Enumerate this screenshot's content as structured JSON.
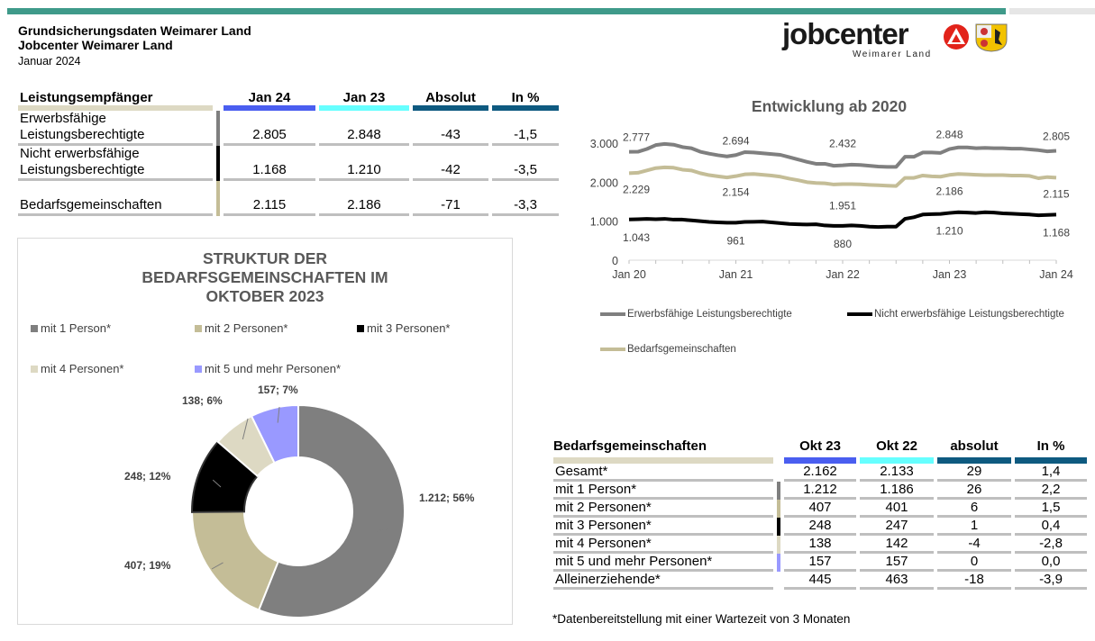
{
  "header": {
    "title1": "Grundsicherungsdaten Weimarer Land",
    "title2": "Jobcenter Weimarer Land",
    "period": "Januar 2024"
  },
  "logo": {
    "brand": "jobcenter",
    "sub": "Weimarer Land"
  },
  "colors": {
    "teal": "#3f9a8a",
    "blue": "#4a5ef0",
    "cyan": "#66ffff",
    "navy": "#0e5a80",
    "khaki": "#ddd9c3",
    "grey": "#7f7f7f",
    "bg_khaki": "#c4bd97",
    "black": "#000000",
    "light": "#ddd9c3",
    "lavender": "#9999ff"
  },
  "table1": {
    "headers": [
      "Leistungsempfänger",
      "Jan 24",
      "Jan 23",
      "Absolut",
      "In %"
    ],
    "rows": [
      {
        "label1": "Erwerbsfähige",
        "label2": "Leistungsberechtigte",
        "v": [
          "2.805",
          "2.848",
          "-43",
          "-1,5"
        ]
      },
      {
        "label1": "Nicht erwerbsfähige",
        "label2": "Leistungsberechtigte",
        "v": [
          "1.168",
          "1.210",
          "-42",
          "-3,5"
        ]
      },
      {
        "label1": "",
        "label2": "Bedarfsgemeinschaften",
        "v": [
          "2.115",
          "2.186",
          "-71",
          "-3,3"
        ]
      }
    ]
  },
  "table2": {
    "headers": [
      "Bedarfsgemeinschaften",
      "Okt 23",
      "Okt 22",
      "absolut",
      "In %"
    ],
    "rows": [
      {
        "label": "Gesamt*",
        "v": [
          "2.162",
          "2.133",
          "29",
          "1,4"
        ]
      },
      {
        "label": "mit 1 Person*",
        "v": [
          "1.212",
          "1.186",
          "26",
          "2,2"
        ]
      },
      {
        "label": "mit 2 Personen*",
        "v": [
          "407",
          "401",
          "6",
          "1,5"
        ]
      },
      {
        "label": "mit 3 Personen*",
        "v": [
          "248",
          "247",
          "1",
          "0,4"
        ]
      },
      {
        "label": "mit 4 Personen*",
        "v": [
          "138",
          "142",
          "-4",
          "-2,8"
        ]
      },
      {
        "label": "mit 5 und mehr Personen*",
        "v": [
          "157",
          "157",
          "0",
          "0,0"
        ]
      },
      {
        "label": "Alleinerziehende*",
        "v": [
          "445",
          "463",
          "-18",
          "-3,9"
        ]
      }
    ]
  },
  "footnote": "*Datenbereitstellung mit einer Wartezeit von 3 Monaten",
  "chart_data": [
    {
      "type": "pie",
      "title": "STRUKTUR DER BEDARFSGEMEINSCHAFTEN IM OKTOBER 2023",
      "legend": "top",
      "categories": [
        "mit 1 Person*",
        "mit 2 Personen*",
        "mit 3 Personen*",
        "mit 4 Personen*",
        "mit 5 und mehr Personen*"
      ],
      "values": [
        1212,
        407,
        248,
        138,
        157
      ],
      "labels": [
        "1.212; 56%",
        "407; 19%",
        "248; 12%",
        "138; 6%",
        "157; 7%"
      ],
      "colors": [
        "#7f7f7f",
        "#c4bd97",
        "#000000",
        "#ddd9c3",
        "#9999ff"
      ]
    },
    {
      "type": "line",
      "title": "Entwicklung ab 2020",
      "ylim": [
        0,
        3000
      ],
      "yticks": [
        "0",
        "1.000",
        "2.000",
        "3.000"
      ],
      "xticks": [
        "Jan 20",
        "Jan 21",
        "Jan 22",
        "Jan 23",
        "Jan 24"
      ],
      "legend": "bottom",
      "series": [
        {
          "name": "Erwerbsfähige Leistungsberechtigte",
          "color": "#7f7f7f",
          "labels": [
            "2.777",
            "2.694",
            "2.432",
            "2.848",
            "2.805"
          ],
          "values": [
            2777,
            2780,
            2850,
            2950,
            2980,
            2960,
            2900,
            2870,
            2780,
            2730,
            2690,
            2660,
            2694,
            2770,
            2760,
            2740,
            2720,
            2700,
            2640,
            2580,
            2520,
            2470,
            2470,
            2420,
            2432,
            2450,
            2440,
            2420,
            2400,
            2390,
            2390,
            2650,
            2650,
            2760,
            2760,
            2750,
            2848,
            2890,
            2890,
            2870,
            2880,
            2870,
            2870,
            2860,
            2860,
            2840,
            2820,
            2790,
            2805
          ]
        },
        {
          "name": "Nicht erwerbsfähige Leistungsberechtigte",
          "color": "#000000",
          "labels": [
            "1.043",
            "961",
            "880",
            "1.210",
            "1.168"
          ],
          "values": [
            1043,
            1050,
            1060,
            1050,
            1060,
            1040,
            1040,
            1020,
            1000,
            980,
            970,
            960,
            961,
            980,
            985,
            990,
            970,
            950,
            930,
            920,
            915,
            920,
            890,
            880,
            880,
            890,
            880,
            860,
            850,
            860,
            860,
            1060,
            1100,
            1170,
            1180,
            1185,
            1210,
            1230,
            1220,
            1210,
            1230,
            1220,
            1200,
            1190,
            1180,
            1170,
            1150,
            1160,
            1168
          ]
        },
        {
          "name": "Bedarfsgemeinschaften",
          "color": "#c4bd97",
          "labels": [
            "2.229",
            "2.154",
            "1.951",
            "2.186",
            "2.115"
          ],
          "values": [
            2229,
            2240,
            2300,
            2360,
            2380,
            2370,
            2320,
            2300,
            2230,
            2180,
            2150,
            2120,
            2154,
            2200,
            2210,
            2190,
            2170,
            2140,
            2090,
            2050,
            2000,
            1980,
            1970,
            1940,
            1951,
            1950,
            1945,
            1930,
            1920,
            1910,
            1900,
            2110,
            2110,
            2170,
            2150,
            2140,
            2186,
            2210,
            2200,
            2190,
            2180,
            2180,
            2180,
            2170,
            2170,
            2160,
            2100,
            2130,
            2115
          ]
        }
      ]
    }
  ]
}
